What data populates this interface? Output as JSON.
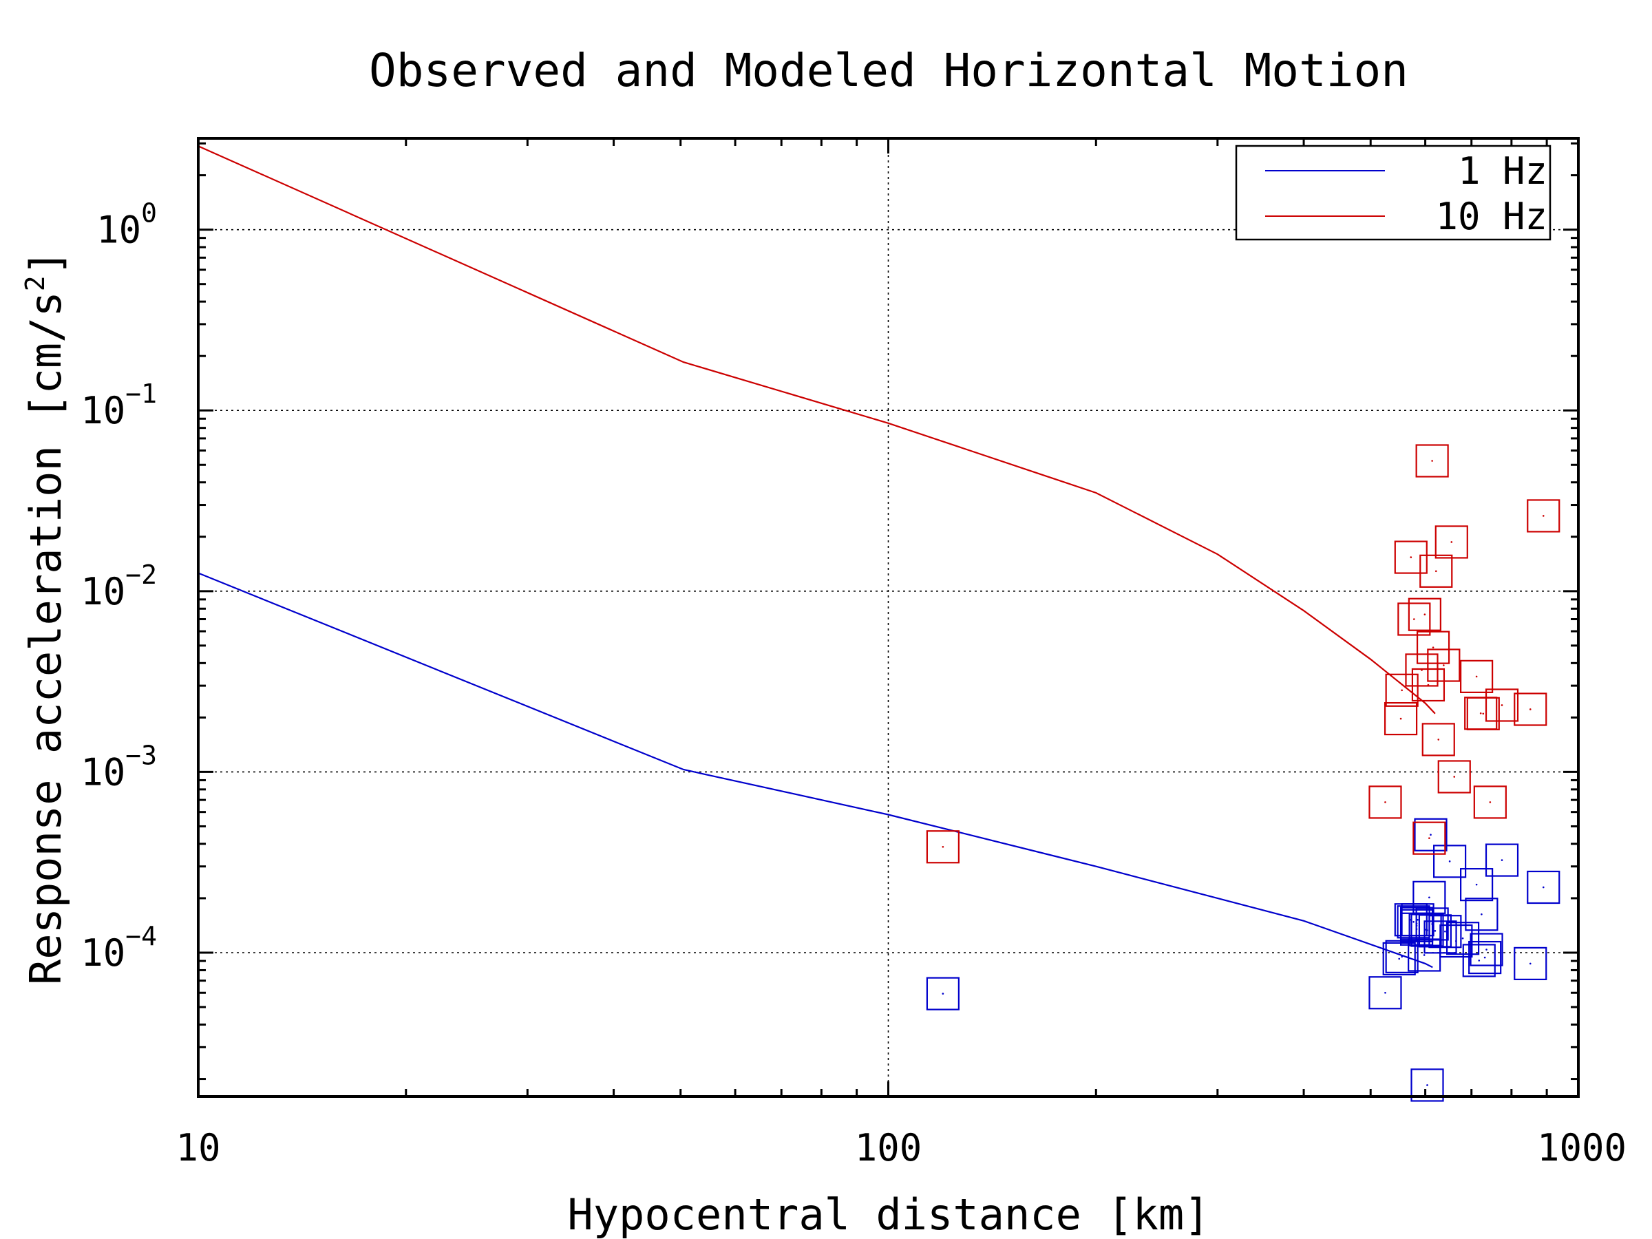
{
  "chart_data": {
    "type": "scatter",
    "title": "Observed and Modeled Horizontal Motion",
    "xlabel": "Hypocentral distance [km]",
    "ylabel_main": "Response acceleration [cm/s",
    "ylabel_sup": "2",
    "ylabel_close": "]",
    "xscale": "log",
    "yscale": "log",
    "xlim": [
      10,
      1000
    ],
    "ylim": [
      1.6e-05,
      3.2
    ],
    "grid": true,
    "legend_position": "top-right",
    "x_ticks": [
      {
        "value": 10,
        "label": "10"
      },
      {
        "value": 100,
        "label": "100"
      },
      {
        "value": 1000,
        "label": "1000"
      }
    ],
    "y_ticks": [
      {
        "value": 1,
        "base": "10",
        "exp": "0"
      },
      {
        "value": 0.1,
        "base": "10",
        "exp": "−1"
      },
      {
        "value": 0.01,
        "base": "10",
        "exp": "−2"
      },
      {
        "value": 0.001,
        "base": "10",
        "exp": "−3"
      },
      {
        "value": 0.0001,
        "base": "10",
        "exp": "−4"
      }
    ],
    "series": [
      {
        "name": "1 Hz",
        "color": "#0000cc",
        "model": [
          [
            10,
            0.0126
          ],
          [
            50.5,
            0.00103
          ],
          [
            100,
            0.00058
          ],
          [
            200,
            0.0003
          ],
          [
            400,
            0.00015
          ],
          [
            600,
            8.7e-05
          ],
          [
            615,
            8.3e-05
          ]
        ],
        "observed": [
          [
            120,
            5.93e-05
          ],
          [
            525,
            6e-05
          ],
          [
            550,
            9.25e-05
          ],
          [
            555,
            9.5e-05
          ],
          [
            572,
            0.000152
          ],
          [
            577,
            0.000148
          ],
          [
            585,
            0.000152
          ],
          [
            583,
            0.000145
          ],
          [
            583,
            0.000135
          ],
          [
            583,
            0.000141
          ],
          [
            598,
            9.7e-05
          ],
          [
            600,
            0.000134
          ],
          [
            604,
            0.000133
          ],
          [
            608,
            0.000202
          ],
          [
            611,
            0.000449
          ],
          [
            614,
            0.000144
          ],
          [
            620,
            0.000132
          ],
          [
            631,
            0.000122
          ],
          [
            641,
            0.000131
          ],
          [
            651,
            0.00032
          ],
          [
            665,
            0.000116
          ],
          [
            680,
            0.00012
          ],
          [
            712,
            0.000238
          ],
          [
            718,
            9.05e-05
          ],
          [
            724,
            0.000163
          ],
          [
            732,
            9.4e-05
          ],
          [
            736,
            0.000104
          ],
          [
            775,
            0.000325
          ],
          [
            852,
            8.7e-05
          ],
          [
            890,
            0.00023
          ],
          [
            604,
            1.85e-05
          ]
        ]
      },
      {
        "name": "10 Hz",
        "color": "#cc0000",
        "model": [
          [
            10,
            2.9
          ],
          [
            50.5,
            0.185
          ],
          [
            100,
            0.085
          ],
          [
            200,
            0.035
          ],
          [
            300,
            0.016
          ],
          [
            400,
            0.0078
          ],
          [
            500,
            0.0042
          ],
          [
            600,
            0.0024
          ],
          [
            620,
            0.0021
          ]
        ],
        "observed": [
          [
            120,
            0.000385
          ],
          [
            525,
            0.00068
          ],
          [
            553,
            0.00197
          ],
          [
            555,
            0.00283
          ],
          [
            572,
            0.0154
          ],
          [
            578,
            0.007
          ],
          [
            593,
            0.00366
          ],
          [
            599,
            0.00743
          ],
          [
            606,
            0.00303
          ],
          [
            608,
            0.00043
          ],
          [
            614,
            0.0526
          ],
          [
            616,
            0.00488
          ],
          [
            622,
            0.0129
          ],
          [
            627,
            0.00151
          ],
          [
            638,
            0.00389
          ],
          [
            655,
            0.0187
          ],
          [
            661,
            0.00094
          ],
          [
            712,
            0.00337
          ],
          [
            722,
            0.00211
          ],
          [
            728,
            0.0021
          ],
          [
            745,
            0.00068
          ],
          [
            775,
            0.00234
          ],
          [
            852,
            0.00222
          ],
          [
            890,
            0.0261
          ]
        ]
      }
    ]
  }
}
